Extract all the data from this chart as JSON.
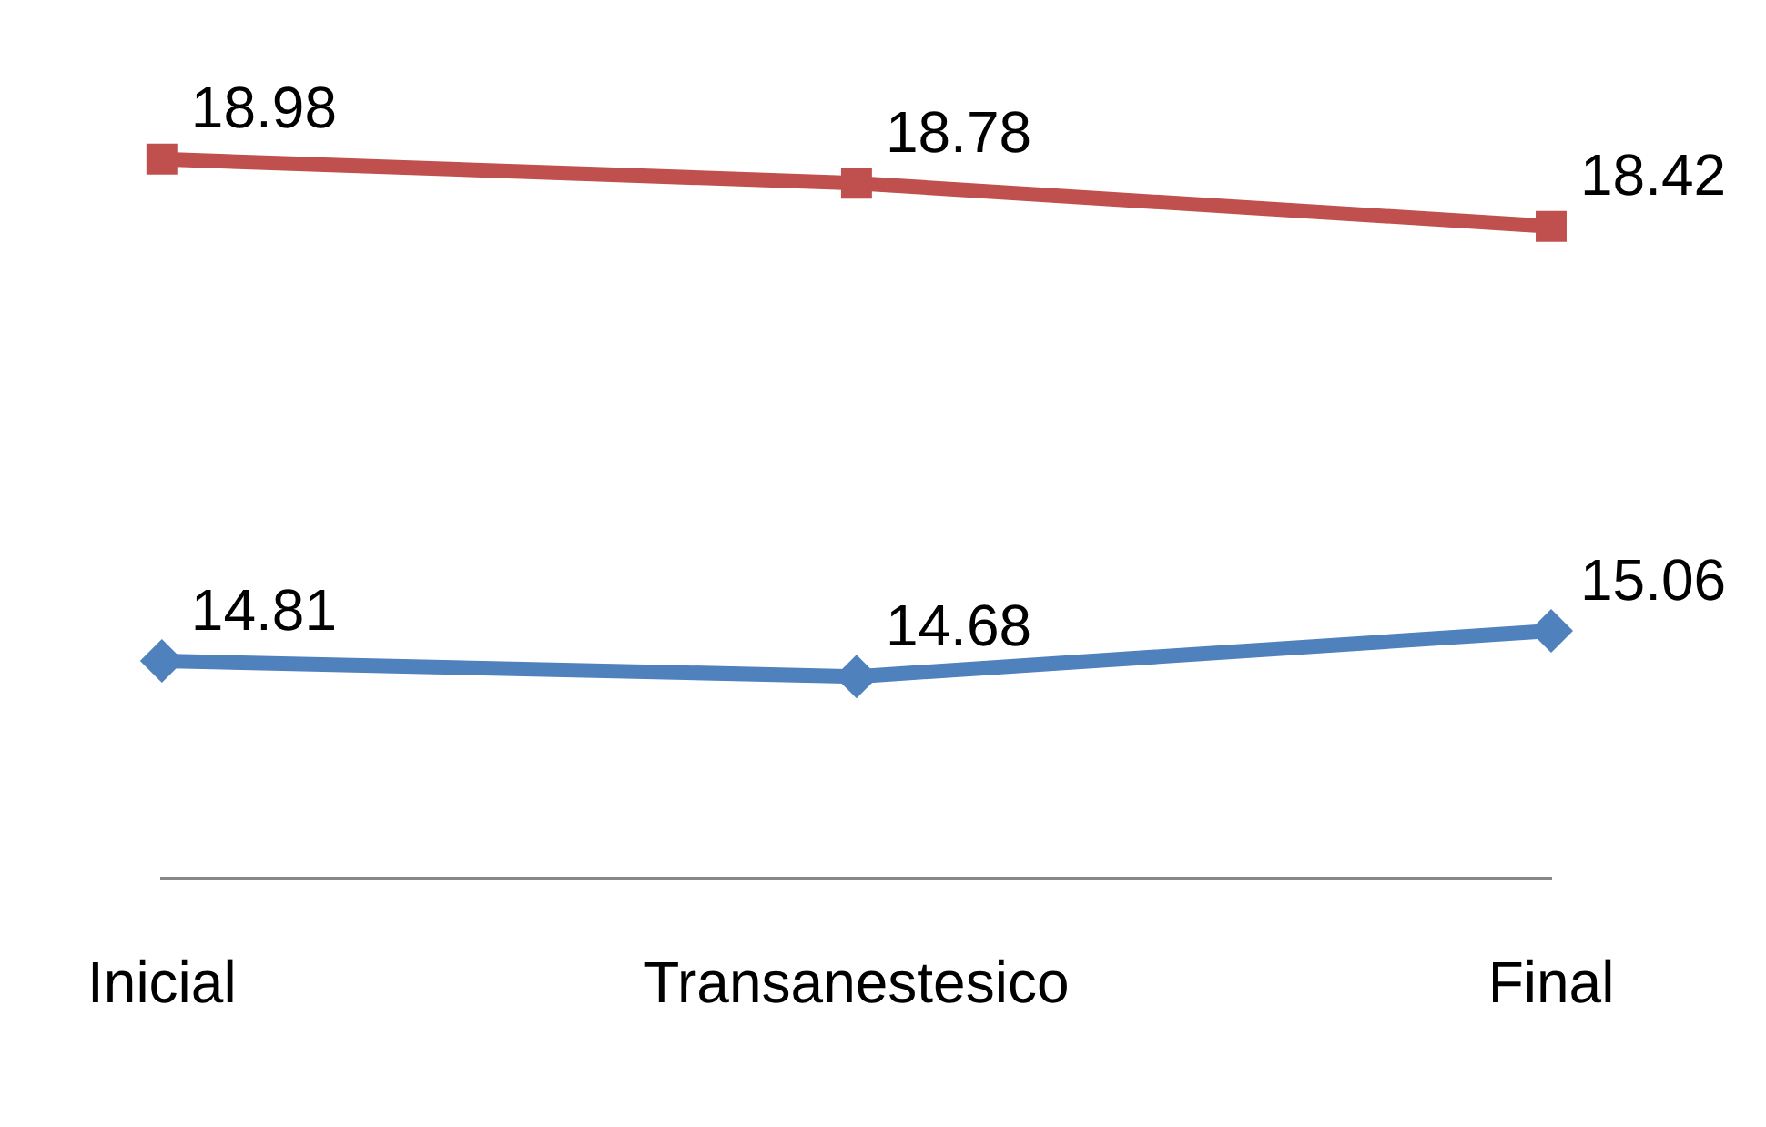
{
  "chart_data": {
    "type": "line",
    "categories": [
      "Inicial",
      "Transanestesico",
      "Final"
    ],
    "series": [
      {
        "color": "#c0504d",
        "marker": "square",
        "values": [
          18.98,
          18.78,
          18.42
        ]
      },
      {
        "color": "#4f81bd",
        "marker": "diamond",
        "values": [
          14.81,
          14.68,
          15.06
        ]
      }
    ],
    "tick_labels": "x",
    "data_labels": true,
    "grid": false,
    "legend": false
  }
}
